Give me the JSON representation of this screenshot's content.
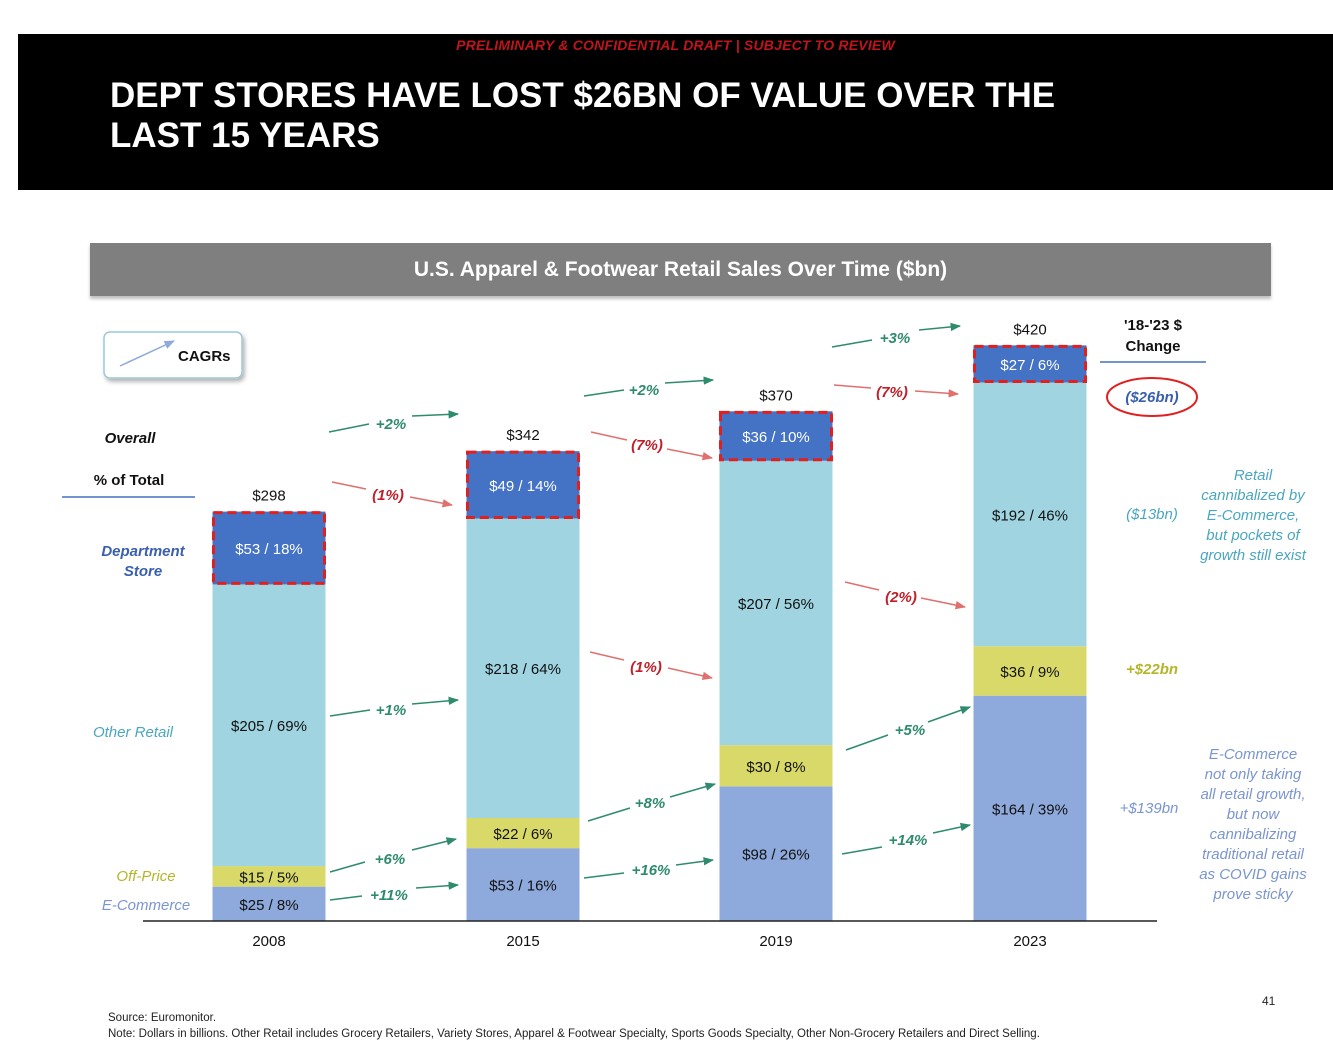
{
  "header": {
    "banner": "PRELIMINARY & CONFIDENTIAL DRAFT | SUBJECT TO REVIEW",
    "title_line1": "DEPT STORES HAVE LOST $26BN OF VALUE OVER THE",
    "title_line2": "LAST 15 YEARS"
  },
  "chart_data": {
    "type": "bar",
    "stacked": true,
    "title": "U.S.  Apparel & Footwear Retail Sales Over Time ($bn)",
    "categories": [
      "2008",
      "2015",
      "2019",
      "2023"
    ],
    "totals": [
      298,
      342,
      370,
      420
    ],
    "total_labels": [
      "$298",
      "$342",
      "$370",
      "$420"
    ],
    "ylim": [
      0,
      420
    ],
    "series": [
      {
        "name": "E-Commerce",
        "color": "#8ea9db",
        "values": [
          25,
          53,
          98,
          164
        ],
        "labels": [
          "$25 / 8%",
          "$53 / 16%",
          "$98 / 26%",
          "$164 / 39%"
        ]
      },
      {
        "name": "Off-Price",
        "color": "#d9d96a",
        "values": [
          15,
          22,
          30,
          36
        ],
        "labels": [
          "$15 / 5%",
          "$22 / 6%",
          "$30 / 8%",
          "$36 / 9%"
        ]
      },
      {
        "name": "Other Retail",
        "color": "#9fd4e0",
        "values": [
          205,
          218,
          207,
          192
        ],
        "labels": [
          "$205 / 69%",
          "$218 / 64%",
          "$207 / 56%",
          "$192 / 46%"
        ]
      },
      {
        "name": "Department Store",
        "color": "#4472c4",
        "values": [
          53,
          49,
          36,
          27
        ],
        "labels": [
          "$53 / 18%",
          "$49 / 14%",
          "$36 / 10%",
          "$27 / 6%"
        ]
      }
    ],
    "row_labels": {
      "overall": "Overall",
      "pct_total": "% of Total",
      "dept": [
        "Department",
        "Store"
      ],
      "other": "Other Retail",
      "offprice": "Off-Price",
      "ecom": "E-Commerce"
    },
    "legend_cagr": "CAGRs",
    "cagr": {
      "overall": [
        "+2%",
        "+2%",
        "+3%"
      ],
      "dept": [
        "(1%)",
        "(7%)",
        "(7%)"
      ],
      "other": [
        "+1%",
        "(1%)",
        "(2%)"
      ],
      "offprice": [
        "+6%",
        "+8%",
        "+5%"
      ],
      "ecom": [
        "+11%",
        "+16%",
        "+14%"
      ]
    },
    "change_header": [
      "'18-'23 $",
      "Change"
    ],
    "changes": {
      "dept": "($26bn)",
      "other": "($13bn)",
      "offprice": "+$22bn",
      "ecom": "+$139bn"
    },
    "notes": {
      "retail": [
        "Retail",
        "cannibalized by",
        "E-Commerce,",
        "but pockets of",
        "growth still exist"
      ],
      "ecom": [
        "E-Commerce",
        "not only taking",
        "all retail growth,",
        "but now",
        "cannibalizing",
        "traditional retail",
        "as COVID gains",
        "prove sticky"
      ]
    },
    "colors": {
      "positive": "#2e8b6e",
      "negative": "#c0202a",
      "dept_text": "#3a5fae",
      "other_text": "#4aa6bf",
      "offprice_text": "#b5b52a",
      "ecom_text": "#7a95cf",
      "dash_border": "#e02020"
    }
  },
  "footer": {
    "source": "Source:  Euromonitor.",
    "note": "Note:     Dollars in billions. Other Retail includes Grocery Retailers, Variety Stores, Apparel & Footwear Specialty, Sports Goods Specialty, Other Non-Grocery Retailers and Direct Selling.",
    "page": "41"
  }
}
